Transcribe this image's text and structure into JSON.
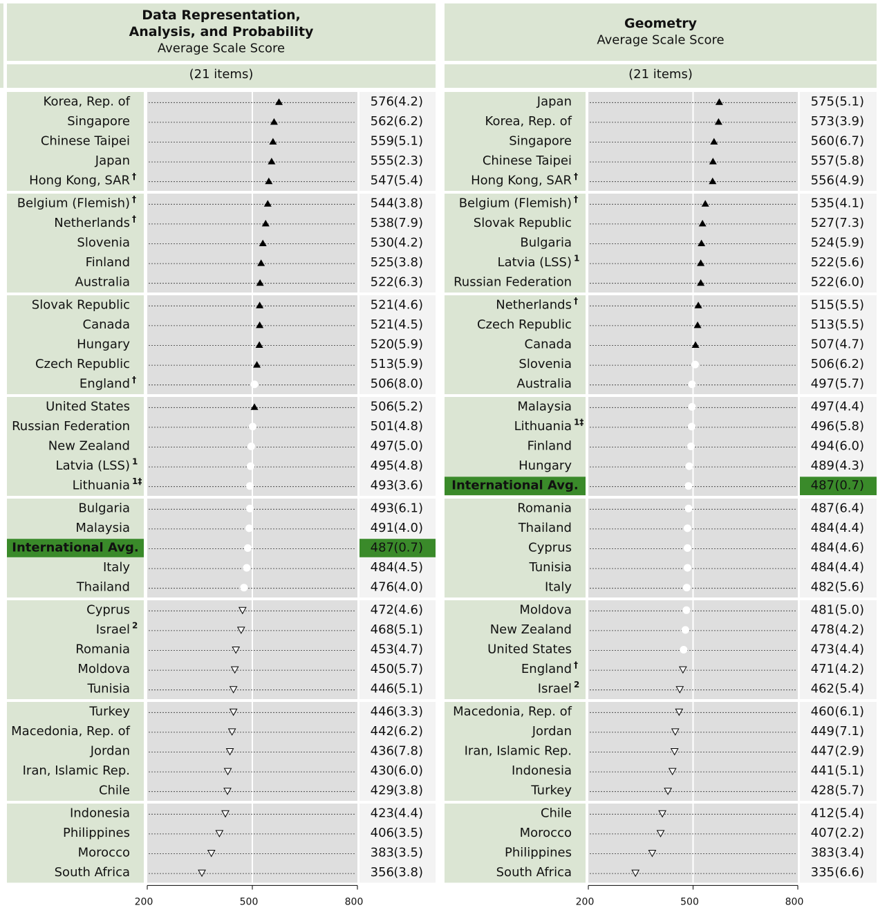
{
  "chart_data": [
    {
      "type": "dot",
      "title": [
        "Data Representation,",
        "Analysis, and Probability"
      ],
      "subtitle": "Average Scale Score",
      "items": "(21 items)",
      "categories": [
        "Korea, Rep. of",
        "Singapore",
        "Chinese Taipei",
        "Japan",
        "Hong Kong, SAR",
        "Belgium (Flemish)",
        "Netherlands",
        "Slovenia",
        "Finland",
        "Australia",
        "Slovak Republic",
        "Canada",
        "Hungary",
        "Czech Republic",
        "England",
        "United States",
        "Russian Federation",
        "New Zealand",
        "Latvia (LSS)",
        "Lithuania",
        "Bulgaria",
        "Malaysia",
        "International Avg.",
        "Italy",
        "Thailand",
        "Cyprus",
        "Israel",
        "Romania",
        "Moldova",
        "Tunisia",
        "Turkey",
        "Macedonia, Rep. of",
        "Jordan",
        "Iran, Islamic Rep.",
        "Chile",
        "Indonesia",
        "Philippines",
        "Morocco",
        "South Africa"
      ],
      "notes": [
        null,
        null,
        null,
        null,
        "†",
        "†",
        "†",
        null,
        null,
        null,
        null,
        null,
        null,
        null,
        "†",
        null,
        null,
        null,
        "1",
        "1‡",
        null,
        null,
        null,
        null,
        null,
        null,
        "2",
        null,
        null,
        null,
        null,
        null,
        null,
        null,
        null,
        null,
        null,
        null,
        null
      ],
      "values": [
        576,
        562,
        559,
        555,
        547,
        544,
        538,
        530,
        525,
        522,
        521,
        521,
        520,
        513,
        506,
        506,
        501,
        497,
        495,
        493,
        493,
        491,
        487,
        484,
        476,
        472,
        468,
        453,
        450,
        446,
        446,
        442,
        436,
        430,
        429,
        423,
        406,
        383,
        356
      ],
      "se": [
        "(4.2)",
        "(6.2)",
        "(5.1)",
        "(2.3)",
        "(5.4)",
        "(3.8)",
        "(7.9)",
        "(4.2)",
        "(3.8)",
        "(6.3)",
        "(4.6)",
        "(4.5)",
        "(5.9)",
        "(5.9)",
        "(8.0)",
        "(5.2)",
        "(4.8)",
        "(5.0)",
        "(4.8)",
        "(3.6)",
        "(6.1)",
        "(4.0)",
        "(0.7)",
        "(4.5)",
        "(4.0)",
        "(4.6)",
        "(5.1)",
        "(4.7)",
        "(5.7)",
        "(5.1)",
        "(3.3)",
        "(6.2)",
        "(7.8)",
        "(6.0)",
        "(3.8)",
        "(4.4)",
        "(3.5)",
        "(3.5)",
        "(3.8)"
      ],
      "markers": [
        "up",
        "up",
        "up",
        "up",
        "up",
        "up",
        "up",
        "up",
        "up",
        "up",
        "up",
        "up",
        "up",
        "up",
        "circle",
        "up",
        "circle",
        "circle",
        "circle",
        "circle",
        "circle",
        "circle",
        "circle",
        "circle",
        "circle",
        "down",
        "down",
        "down",
        "down",
        "down",
        "down",
        "down",
        "down",
        "down",
        "down",
        "down",
        "down",
        "down",
        "down"
      ],
      "highlight": 22,
      "highlight_color": "#3a8a2a",
      "xlim": [
        200,
        800
      ],
      "xticks": [
        200,
        500,
        800
      ]
    },
    {
      "type": "dot",
      "title": [
        "Geometry"
      ],
      "subtitle": "Average Scale Score",
      "items": "(21 items)",
      "categories": [
        "Japan",
        "Korea, Rep. of",
        "Singapore",
        "Chinese Taipei",
        "Hong Kong, SAR",
        "Belgium (Flemish)",
        "Slovak Republic",
        "Bulgaria",
        "Latvia (LSS)",
        "Russian Federation",
        "Netherlands",
        "Czech Republic",
        "Canada",
        "Slovenia",
        "Australia",
        "Malaysia",
        "Lithuania",
        "Finland",
        "Hungary",
        "International Avg.",
        "Romania",
        "Thailand",
        "Cyprus",
        "Tunisia",
        "Italy",
        "Moldova",
        "New Zealand",
        "United States",
        "England",
        "Israel",
        "Macedonia, Rep. of",
        "Jordan",
        "Iran, Islamic Rep.",
        "Indonesia",
        "Turkey",
        "Chile",
        "Morocco",
        "Philippines",
        "South Africa"
      ],
      "notes": [
        null,
        null,
        null,
        null,
        "†",
        "†",
        null,
        null,
        "1",
        null,
        "†",
        null,
        null,
        null,
        null,
        null,
        "1‡",
        null,
        null,
        null,
        null,
        null,
        null,
        null,
        null,
        null,
        null,
        null,
        "†",
        "2",
        null,
        null,
        null,
        null,
        null,
        null,
        null,
        null,
        null
      ],
      "values": [
        575,
        573,
        560,
        557,
        556,
        535,
        527,
        524,
        522,
        522,
        515,
        513,
        507,
        506,
        497,
        497,
        496,
        494,
        489,
        487,
        487,
        484,
        484,
        484,
        482,
        481,
        478,
        473,
        471,
        462,
        460,
        449,
        447,
        441,
        428,
        412,
        407,
        383,
        335
      ],
      "se": [
        "(5.1)",
        "(3.9)",
        "(6.7)",
        "(5.8)",
        "(4.9)",
        "(4.1)",
        "(7.3)",
        "(5.9)",
        "(5.6)",
        "(6.0)",
        "(5.5)",
        "(5.5)",
        "(4.7)",
        "(6.2)",
        "(5.7)",
        "(4.4)",
        "(5.8)",
        "(6.0)",
        "(4.3)",
        "(0.7)",
        "(6.4)",
        "(4.4)",
        "(4.6)",
        "(4.4)",
        "(5.6)",
        "(5.0)",
        "(4.2)",
        "(4.4)",
        "(4.2)",
        "(5.4)",
        "(6.1)",
        "(7.1)",
        "(2.9)",
        "(5.1)",
        "(5.7)",
        "(5.4)",
        "(2.2)",
        "(3.4)",
        "(6.6)"
      ],
      "markers": [
        "up",
        "up",
        "up",
        "up",
        "up",
        "up",
        "up",
        "up",
        "up",
        "up",
        "up",
        "up",
        "up",
        "circle",
        "circle",
        "circle",
        "circle",
        "circle",
        "circle",
        "circle",
        "circle",
        "circle",
        "circle",
        "circle",
        "circle",
        "circle",
        "circle",
        "circle",
        "down",
        "down",
        "down",
        "down",
        "down",
        "down",
        "down",
        "down",
        "down",
        "down",
        "down"
      ],
      "highlight": 19,
      "highlight_color": "#3a8a2a",
      "xlim": [
        200,
        800
      ],
      "xticks": [
        200,
        500,
        800
      ]
    }
  ]
}
